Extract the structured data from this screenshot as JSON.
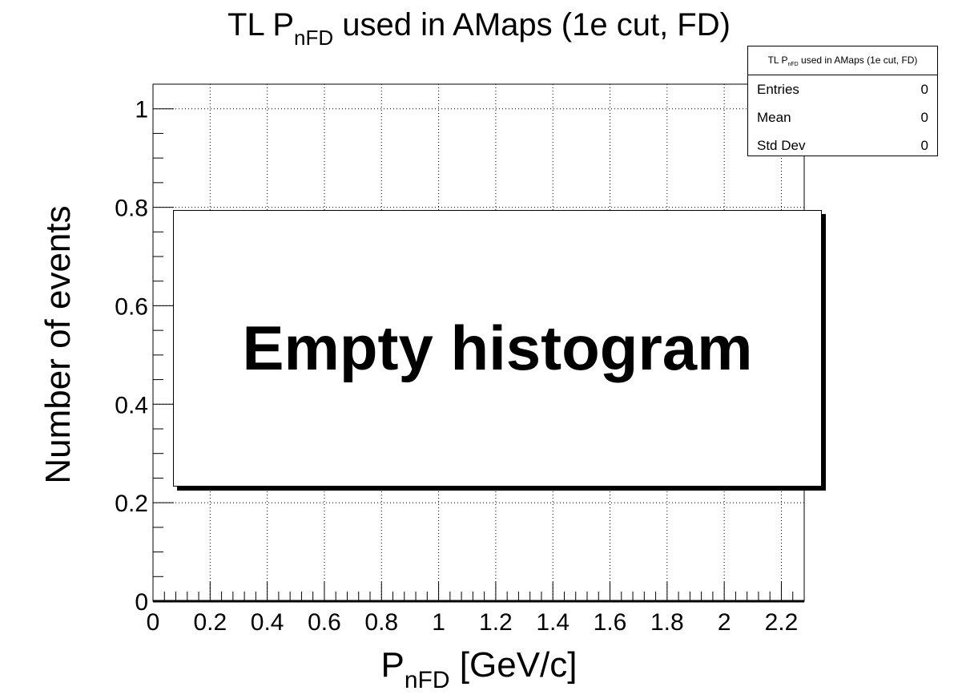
{
  "title": {
    "prefix": "TL P",
    "sub": "nFD",
    "suffix": " used in AMaps (1e cut, FD)"
  },
  "stats_box": {
    "title_prefix": "TL P",
    "title_sub": "nFD",
    "title_suffix": " used in AMaps (1e cut, FD)",
    "rows": [
      {
        "label": "Entries",
        "value": "0"
      },
      {
        "label": "Mean",
        "value": "0"
      },
      {
        "label": "Std Dev",
        "value": "0"
      }
    ]
  },
  "empty_message": "Empty histogram",
  "chart_data": {
    "type": "bar",
    "title": "TL P_nFD used in AMaps (1e cut, FD)",
    "xlabel": "P_nFD [GeV/c]",
    "ylabel": "Number of events",
    "xlim": [
      0,
      2.28
    ],
    "ylim": [
      0,
      1.05
    ],
    "x_ticks": [
      "0",
      "0.2",
      "0.4",
      "0.6",
      "0.8",
      "1",
      "1.2",
      "1.4",
      "1.6",
      "1.8",
      "2",
      "2.2"
    ],
    "y_ticks": [
      "0",
      "0.2",
      "0.4",
      "0.6",
      "0.8",
      "1"
    ],
    "grid": true,
    "series": [],
    "entries": 0,
    "mean": 0,
    "std_dev": 0
  },
  "axis_labels": {
    "x_main": "P",
    "x_sub": "nFD",
    "x_suffix": " [GeV/c]",
    "y": "Number of events"
  }
}
